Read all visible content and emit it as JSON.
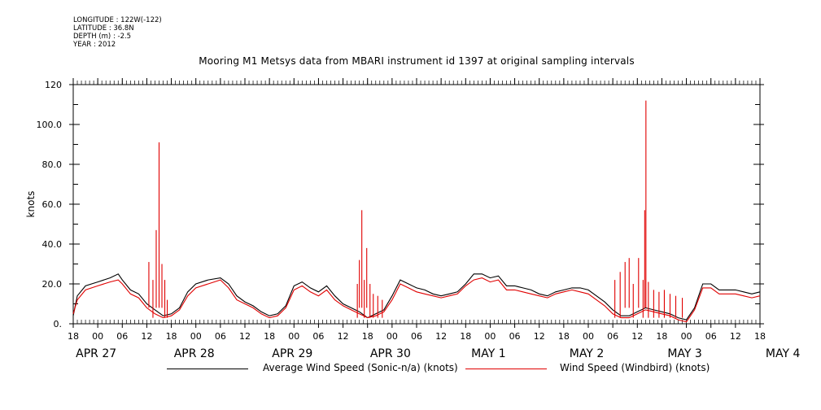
{
  "header": {
    "meta": [
      "LONGITUDE : 122W(-122)",
      "LATITUDE : 36.8N",
      "DEPTH (m) : -2.5",
      "YEAR : 2012"
    ],
    "title": "Mooring M1 Metsys data from MBARI instrument id 1397 at original sampling intervals"
  },
  "chart_data": {
    "type": "line",
    "ylabel": "knots",
    "ylim": [
      0,
      120
    ],
    "yticks": [
      "0.",
      "20.0",
      "40.0",
      "60.0",
      "80.0",
      "100.0",
      "120"
    ],
    "x_hours_range": [
      -6,
      162
    ],
    "x_hour_ticks": [
      "18",
      "00",
      "06",
      "12",
      "18",
      "00",
      "06",
      "12",
      "18",
      "00",
      "06",
      "12",
      "18",
      "00",
      "06",
      "12",
      "18",
      "00",
      "06",
      "12",
      "18",
      "00",
      "06",
      "12",
      "18",
      "00",
      "06",
      "12",
      "18"
    ],
    "x_day_labels": [
      "APR 27",
      "APR 28",
      "APR 29",
      "APR 30",
      "MAY  1",
      "MAY  2",
      "MAY  3",
      "MAY  4"
    ],
    "series": [
      {
        "name": "Average Wind Speed (Sonic-n/a) (knots)",
        "color": "#000000",
        "points": [
          [
            -6,
            4
          ],
          [
            -5,
            14
          ],
          [
            -3,
            19
          ],
          [
            0,
            21
          ],
          [
            3,
            23
          ],
          [
            5,
            25
          ],
          [
            6,
            22
          ],
          [
            8,
            17
          ],
          [
            10,
            15
          ],
          [
            12,
            10
          ],
          [
            14,
            7
          ],
          [
            16,
            4
          ],
          [
            18,
            5
          ],
          [
            20,
            8
          ],
          [
            22,
            16
          ],
          [
            24,
            20
          ],
          [
            27,
            22
          ],
          [
            30,
            23
          ],
          [
            32,
            20
          ],
          [
            34,
            14
          ],
          [
            36,
            11
          ],
          [
            38,
            9
          ],
          [
            40,
            6
          ],
          [
            42,
            4
          ],
          [
            44,
            5
          ],
          [
            46,
            9
          ],
          [
            48,
            19
          ],
          [
            50,
            21
          ],
          [
            52,
            18
          ],
          [
            54,
            16
          ],
          [
            56,
            19
          ],
          [
            58,
            14
          ],
          [
            60,
            10
          ],
          [
            62,
            8
          ],
          [
            64,
            6
          ],
          [
            66,
            3
          ],
          [
            68,
            5
          ],
          [
            70,
            7
          ],
          [
            72,
            14
          ],
          [
            74,
            22
          ],
          [
            76,
            20
          ],
          [
            78,
            18
          ],
          [
            80,
            17
          ],
          [
            82,
            15
          ],
          [
            84,
            14
          ],
          [
            86,
            15
          ],
          [
            88,
            16
          ],
          [
            90,
            20
          ],
          [
            92,
            25
          ],
          [
            94,
            25
          ],
          [
            96,
            23
          ],
          [
            98,
            24
          ],
          [
            100,
            19
          ],
          [
            102,
            19
          ],
          [
            104,
            18
          ],
          [
            106,
            17
          ],
          [
            108,
            15
          ],
          [
            110,
            14
          ],
          [
            112,
            16
          ],
          [
            114,
            17
          ],
          [
            116,
            18
          ],
          [
            118,
            18
          ],
          [
            120,
            17
          ],
          [
            122,
            14
          ],
          [
            124,
            11
          ],
          [
            126,
            7
          ],
          [
            128,
            4
          ],
          [
            130,
            4
          ],
          [
            132,
            6
          ],
          [
            134,
            8
          ],
          [
            136,
            7
          ],
          [
            138,
            6
          ],
          [
            140,
            5
          ],
          [
            142,
            3
          ],
          [
            144,
            2
          ],
          [
            146,
            8
          ],
          [
            148,
            20
          ],
          [
            150,
            20
          ],
          [
            152,
            17
          ],
          [
            154,
            17
          ],
          [
            156,
            17
          ],
          [
            158,
            16
          ],
          [
            160,
            15
          ],
          [
            162,
            16
          ]
        ]
      },
      {
        "name": "Wind Speed (Windbird) (knots)",
        "color": "#e00000",
        "points": [
          [
            -6,
            5
          ],
          [
            -5,
            12
          ],
          [
            -3,
            17
          ],
          [
            0,
            19
          ],
          [
            3,
            21
          ],
          [
            5,
            22
          ],
          [
            6,
            20
          ],
          [
            8,
            15
          ],
          [
            10,
            13
          ],
          [
            12,
            8
          ],
          [
            14,
            5
          ],
          [
            16,
            3
          ],
          [
            18,
            4
          ],
          [
            20,
            7
          ],
          [
            22,
            14
          ],
          [
            24,
            18
          ],
          [
            27,
            20
          ],
          [
            30,
            22
          ],
          [
            32,
            18
          ],
          [
            34,
            12
          ],
          [
            36,
            10
          ],
          [
            38,
            8
          ],
          [
            40,
            5
          ],
          [
            42,
            3
          ],
          [
            44,
            4
          ],
          [
            46,
            8
          ],
          [
            48,
            17
          ],
          [
            50,
            19
          ],
          [
            52,
            16
          ],
          [
            54,
            14
          ],
          [
            56,
            17
          ],
          [
            58,
            12
          ],
          [
            60,
            9
          ],
          [
            62,
            7
          ],
          [
            64,
            5
          ],
          [
            66,
            3
          ],
          [
            68,
            4
          ],
          [
            70,
            6
          ],
          [
            72,
            12
          ],
          [
            74,
            20
          ],
          [
            76,
            18
          ],
          [
            78,
            16
          ],
          [
            80,
            15
          ],
          [
            82,
            14
          ],
          [
            84,
            13
          ],
          [
            86,
            14
          ],
          [
            88,
            15
          ],
          [
            90,
            19
          ],
          [
            92,
            22
          ],
          [
            94,
            23
          ],
          [
            96,
            21
          ],
          [
            98,
            22
          ],
          [
            100,
            17
          ],
          [
            102,
            17
          ],
          [
            104,
            16
          ],
          [
            106,
            15
          ],
          [
            108,
            14
          ],
          [
            110,
            13
          ],
          [
            112,
            15
          ],
          [
            114,
            16
          ],
          [
            116,
            17
          ],
          [
            118,
            16
          ],
          [
            120,
            15
          ],
          [
            122,
            12
          ],
          [
            124,
            9
          ],
          [
            126,
            5
          ],
          [
            128,
            3
          ],
          [
            130,
            3
          ],
          [
            132,
            5
          ],
          [
            134,
            7
          ],
          [
            136,
            6
          ],
          [
            138,
            5
          ],
          [
            140,
            4
          ],
          [
            142,
            2
          ],
          [
            144,
            1
          ],
          [
            146,
            7
          ],
          [
            148,
            18
          ],
          [
            150,
            18
          ],
          [
            152,
            15
          ],
          [
            154,
            15
          ],
          [
            156,
            15
          ],
          [
            158,
            14
          ],
          [
            160,
            13
          ],
          [
            162,
            14
          ]
        ]
      }
    ],
    "red_spikes": [
      [
        12.5,
        31
      ],
      [
        13.5,
        22
      ],
      [
        14.3,
        47
      ],
      [
        15.0,
        91
      ],
      [
        15.7,
        30
      ],
      [
        16.4,
        22
      ],
      [
        17,
        12
      ],
      [
        63.5,
        20
      ],
      [
        64,
        32
      ],
      [
        64.6,
        57
      ],
      [
        65.2,
        22
      ],
      [
        65.8,
        38
      ],
      [
        66.6,
        20
      ],
      [
        67.4,
        15
      ],
      [
        68.5,
        14
      ],
      [
        69.6,
        12
      ],
      [
        126.5,
        22
      ],
      [
        127.8,
        26
      ],
      [
        129,
        31
      ],
      [
        130,
        33
      ],
      [
        131,
        20
      ],
      [
        132.3,
        33
      ],
      [
        133.4,
        22
      ],
      [
        133.8,
        57
      ],
      [
        134.1,
        112
      ],
      [
        134.7,
        21
      ],
      [
        136,
        17
      ],
      [
        137.3,
        16
      ],
      [
        138.6,
        17
      ],
      [
        140,
        15
      ],
      [
        141.4,
        14
      ],
      [
        143,
        13
      ]
    ]
  }
}
